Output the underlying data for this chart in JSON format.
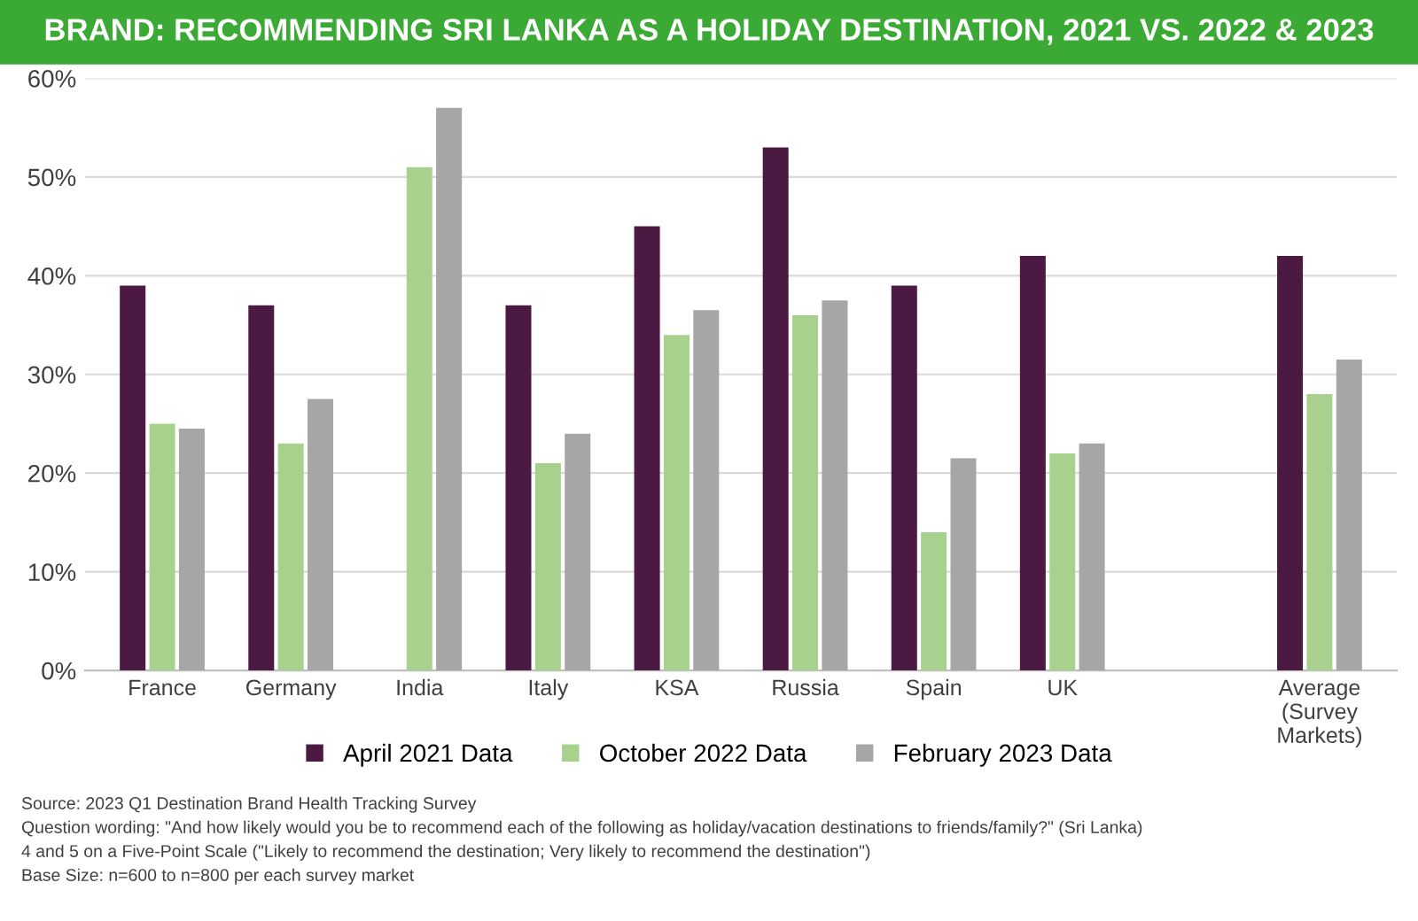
{
  "chart_data": {
    "type": "bar",
    "title": "BRAND: RECOMMENDING SRI LANKA AS A HOLIDAY DESTINATION, 2021 VS. 2022 & 2023",
    "categories": [
      "France",
      "Germany",
      "India",
      "Italy",
      "KSA",
      "Russia",
      "Spain",
      "UK",
      null,
      "Average\n(Survey\nMarkets)"
    ],
    "series": [
      {
        "name": "April 2021 Data",
        "color": "#4b1942",
        "values": [
          39,
          37,
          null,
          37,
          45,
          53,
          39,
          42,
          null,
          42
        ]
      },
      {
        "name": "October 2022 Data",
        "color": "#a9d18e",
        "values": [
          25,
          23,
          51,
          21,
          34,
          36,
          14,
          22,
          null,
          28
        ]
      },
      {
        "name": "February 2023 Data",
        "color": "#a6a6a6",
        "values": [
          24.5,
          27.5,
          57,
          24,
          36.5,
          37.5,
          21.5,
          23,
          null,
          31.5
        ]
      }
    ],
    "ylim": [
      0,
      60
    ],
    "yticks": [
      {
        "value": 0,
        "label": "0%"
      },
      {
        "value": 10,
        "label": "10%"
      },
      {
        "value": 20,
        "label": "20%"
      },
      {
        "value": 30,
        "label": "30%"
      },
      {
        "value": 40,
        "label": "40%"
      },
      {
        "value": 50,
        "label": "50%"
      },
      {
        "value": 60,
        "label": "60%"
      }
    ],
    "grid": "y",
    "legend": "bottom",
    "annotations": [
      "Source: 2023 Q1 Destination Brand Health Tracking Survey",
      "Question wording: \"And how likely would you be to recommend each of the following as holiday/vacation destinations to friends/family?\" (Sri Lanka)",
      "4 and 5 on a Five-Point Scale (\"Likely to recommend the destination; Very likely to recommend the destination\")",
      "Base Size: n=600 to n=800 per each survey market"
    ]
  }
}
